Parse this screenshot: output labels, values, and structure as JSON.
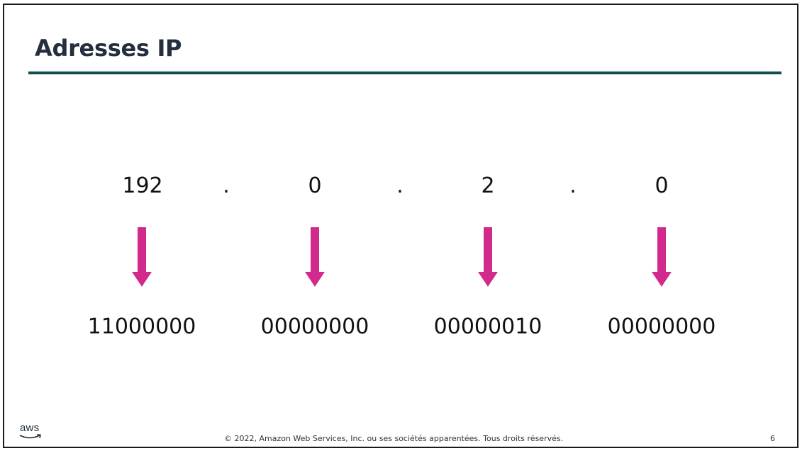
{
  "slide": {
    "title": "Adresses IP",
    "octets": [
      "192",
      "0",
      "2",
      "0"
    ],
    "dots": [
      ".",
      ".",
      "."
    ],
    "binary": [
      "11000000",
      "00000000",
      "00000010",
      "00000000"
    ],
    "arrow_color": "#d12a8c",
    "rule_color": "#0f4e52"
  },
  "footer": {
    "logo_text": "aws",
    "copyright": "© 2022, Amazon Web Services, Inc. ou ses sociétés apparentées. Tous droits réservés.",
    "page_number": "6"
  }
}
